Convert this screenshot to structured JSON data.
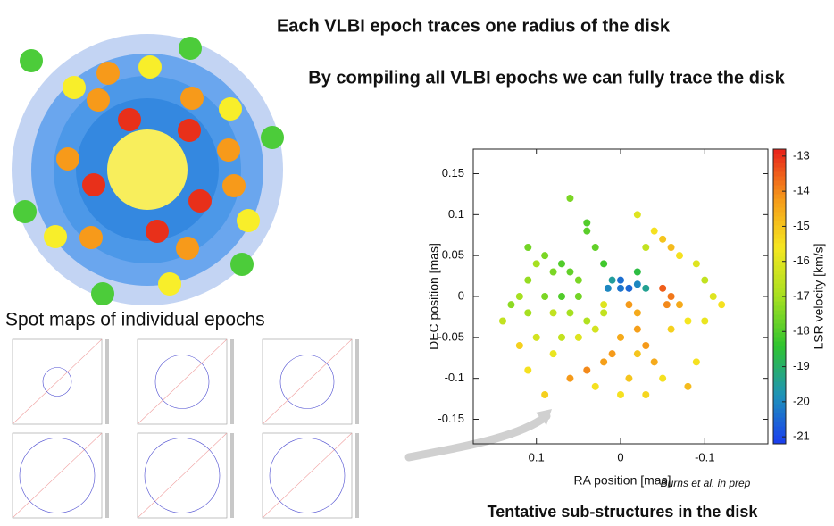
{
  "slide": {
    "headline_1": "Each VLBI epoch traces one radius of the disk",
    "headline_2": "By compiling all VLBI epochs we can fully trace the disk",
    "spot_maps_title": "Spot maps of individual epochs",
    "caption": "Tentative sub-structures in the disk",
    "credit": "Burns et al. in prep"
  },
  "chart_data": {
    "type": "scatter",
    "xlabel": "RA position [mas]",
    "ylabel": "DEC position [mas]",
    "colorbar_label": "LSR velocity [km/s]",
    "xlim": [
      0.175,
      -0.175
    ],
    "xticks": [
      0.1,
      0,
      -0.1
    ],
    "ylim": [
      -0.18,
      0.18
    ],
    "yticks": [
      0.15,
      0.1,
      0.05,
      0,
      -0.05,
      -0.1,
      -0.15
    ],
    "clim": [
      -21.2,
      -12.8
    ],
    "cticks": [
      -13,
      -14,
      -15,
      -16,
      -17,
      -18,
      -19,
      -20,
      -21
    ],
    "colormap": [
      "#1a3cf0",
      "#1e93b8",
      "#2fc42f",
      "#a6e020",
      "#f5e620",
      "#f59a1a",
      "#e8201a"
    ],
    "x": [
      0.06,
      0.04,
      0.09,
      0.1,
      0.08,
      0.07,
      0.06,
      0.05,
      0.11,
      0.12,
      0.09,
      0.07,
      0.05,
      0.13,
      0.11,
      0.08,
      0.06,
      0.04,
      0.02,
      0.03,
      0.02,
      0.04,
      0.01,
      0.0,
      -0.01,
      -0.02,
      -0.03,
      0.015,
      0.0,
      -0.02,
      -0.03,
      -0.04,
      -0.02,
      -0.05,
      -0.06,
      -0.07,
      -0.09,
      -0.1,
      -0.11,
      -0.12,
      -0.1,
      -0.05,
      -0.06,
      -0.055,
      -0.07,
      -0.01,
      -0.02,
      -0.02,
      -0.03,
      -0.04,
      -0.02,
      0.0,
      0.01,
      0.02,
      0.04,
      0.06,
      0.09,
      0.03,
      0.0,
      -0.01,
      -0.05,
      -0.08,
      -0.09,
      -0.06,
      -0.08,
      0.12,
      0.11,
      0.1,
      0.07,
      0.05,
      0.03,
      0.08,
      0.14,
      0.11,
      -0.03,
      0.02
    ],
    "y": [
      0.12,
      0.09,
      0.05,
      0.04,
      0.03,
      0.04,
      0.03,
      0.02,
      0.02,
      0.0,
      0.0,
      0.0,
      0.0,
      -0.01,
      -0.02,
      -0.02,
      -0.02,
      -0.03,
      -0.02,
      0.06,
      0.04,
      0.08,
      0.02,
      0.01,
      0.01,
      0.015,
      0.01,
      0.01,
      0.02,
      0.03,
      0.06,
      0.08,
      0.1,
      0.07,
      0.06,
      0.05,
      0.04,
      0.02,
      0.0,
      -0.01,
      -0.03,
      0.01,
      0.0,
      -0.01,
      -0.01,
      -0.01,
      -0.02,
      -0.04,
      -0.06,
      -0.08,
      -0.07,
      -0.05,
      -0.07,
      -0.08,
      -0.09,
      -0.1,
      -0.12,
      -0.11,
      -0.12,
      -0.1,
      -0.1,
      -0.11,
      -0.08,
      -0.04,
      -0.03,
      -0.06,
      -0.09,
      -0.05,
      -0.05,
      -0.05,
      -0.04,
      -0.07,
      -0.03,
      0.06,
      -0.12,
      -0.01
    ],
    "values": [
      -17.5,
      -18,
      -17.5,
      -17,
      -17.5,
      -18,
      -17.8,
      -17.5,
      -17.2,
      -17,
      -17.5,
      -18,
      -17.6,
      -17.3,
      -17,
      -16.5,
      -17,
      -16.8,
      -16.5,
      -17.8,
      -18.2,
      -17.9,
      -19.5,
      -20.3,
      -20.5,
      -20,
      -19.4,
      -20,
      -20.4,
      -18.6,
      -16.5,
      -15.5,
      -16,
      -15,
      -14.8,
      -15.5,
      -16,
      -16.5,
      -16,
      -15.5,
      -15.8,
      -13.5,
      -13.8,
      -14,
      -14.5,
      -14.2,
      -14.5,
      -14.3,
      -14.2,
      -14.5,
      -15,
      -14.5,
      -14.2,
      -14.3,
      -14,
      -14.2,
      -15.2,
      -15.5,
      -15.5,
      -15,
      -15.5,
      -14.8,
      -15.5,
      -15.2,
      -15.6,
      -15.2,
      -15.5,
      -16.2,
      -16.5,
      -16,
      -16.2,
      -15.8,
      -16.5,
      -17.6,
      -15.3,
      -16
    ]
  }
}
